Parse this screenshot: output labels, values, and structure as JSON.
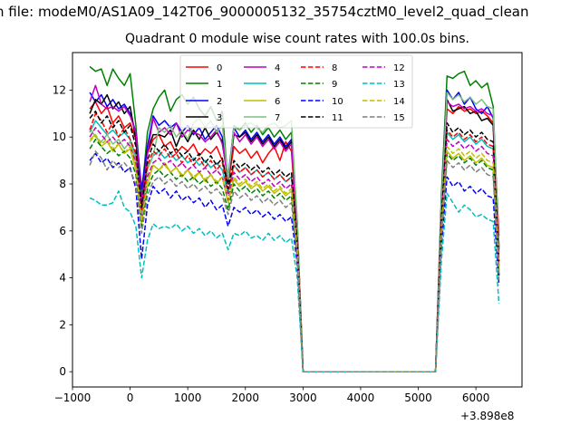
{
  "suptitle": "n file: modeM0/AS1A09_142T06_9000005132_35754cztM0_level2_quad_clean",
  "chart_data": {
    "type": "line",
    "title": "Quadrant 0 module wise count rates with 100.0s bins.",
    "xlabel": "",
    "ylabel": "",
    "x_offset_label": "+3.898e8",
    "xlim": [
      -1000,
      6800
    ],
    "ylim": [
      -0.65,
      13.6
    ],
    "x_ticks": [
      -1000,
      0,
      1000,
      2000,
      3000,
      4000,
      5000,
      6000
    ],
    "x_tick_labels": [
      "−1000",
      "0",
      "1000",
      "2000",
      "3000",
      "4000",
      "5000",
      "6000"
    ],
    "y_ticks": [
      0,
      2,
      4,
      6,
      8,
      10,
      12
    ],
    "y_tick_labels": [
      "0",
      "2",
      "4",
      "6",
      "8",
      "10",
      "12"
    ],
    "grid": false,
    "legend_position": "top-center",
    "legend_columns": 4,
    "x": [
      -700,
      -600,
      -500,
      -400,
      -300,
      -200,
      -100,
      0,
      100,
      200,
      300,
      400,
      500,
      600,
      700,
      800,
      900,
      1000,
      1100,
      1200,
      1300,
      1400,
      1500,
      1600,
      1700,
      1800,
      1900,
      2000,
      2100,
      2200,
      2300,
      2400,
      2500,
      2600,
      2700,
      2800,
      2900,
      3000,
      5300,
      5400,
      5500,
      5600,
      5700,
      5800,
      5900,
      6000,
      6100,
      6200,
      6300,
      6400
    ],
    "series": [
      {
        "name": "0",
        "color": "#ff0000",
        "dash": "solid",
        "values": [
          11.2,
          11.5,
          11.0,
          11.3,
          10.6,
          10.9,
          10.4,
          10.6,
          9.9,
          7.4,
          9.3,
          9.9,
          10.1,
          9.6,
          9.8,
          9.3,
          9.6,
          9.4,
          9.7,
          9.2,
          9.5,
          9.3,
          9.6,
          9.0,
          8.0,
          9.6,
          9.3,
          9.5,
          9.1,
          9.4,
          8.9,
          9.3,
          9.6,
          9.0,
          9.8,
          9.4,
          6.0,
          0,
          0,
          6.8,
          11.2,
          11.0,
          11.3,
          11.1,
          11.2,
          11.0,
          11.1,
          10.9,
          10.6,
          5.8
        ]
      },
      {
        "name": "1",
        "color": "#008000",
        "dash": "solid",
        "values": [
          13.0,
          12.8,
          12.9,
          12.2,
          12.9,
          12.5,
          12.2,
          12.7,
          10.5,
          7.5,
          10.2,
          11.2,
          11.7,
          12.0,
          11.1,
          11.6,
          11.8,
          11.4,
          11.7,
          11.2,
          10.9,
          11.3,
          10.7,
          11.1,
          8.0,
          10.5,
          10.3,
          10.6,
          10.2,
          10.5,
          10.1,
          10.4,
          10.0,
          10.3,
          9.9,
          10.2,
          6.4,
          0,
          0,
          7.5,
          12.6,
          12.5,
          12.7,
          12.8,
          12.2,
          12.4,
          12.1,
          12.3,
          11.3,
          5.3
        ]
      },
      {
        "name": "2",
        "color": "#0000ff",
        "dash": "solid",
        "values": [
          11.9,
          11.5,
          11.8,
          11.3,
          11.6,
          11.2,
          11.4,
          11.0,
          10.2,
          7.8,
          9.6,
          10.9,
          10.5,
          10.7,
          10.4,
          10.6,
          10.2,
          10.5,
          10.1,
          10.4,
          9.9,
          10.2,
          10.5,
          10.0,
          8.3,
          10.4,
          10.0,
          10.3,
          9.9,
          10.2,
          9.8,
          10.1,
          9.7,
          10.0,
          9.6,
          9.9,
          6.3,
          0,
          0,
          7.2,
          12.0,
          11.6,
          11.9,
          11.4,
          11.7,
          11.2,
          11.0,
          11.3,
          10.8,
          5.2
        ]
      },
      {
        "name": "3",
        "color": "#000000",
        "dash": "solid",
        "values": [
          11.0,
          11.6,
          11.4,
          11.8,
          11.2,
          11.5,
          11.0,
          11.3,
          9.9,
          7.2,
          9.4,
          10.1,
          10.1,
          10.0,
          10.3,
          9.6,
          10.2,
          9.8,
          10.3,
          9.9,
          10.4,
          9.9,
          10.2,
          9.8,
          8.1,
          10.1,
          10.0,
          10.2,
          9.8,
          10.1,
          9.7,
          10.0,
          9.6,
          9.9,
          9.5,
          9.8,
          6.1,
          0,
          0,
          6.9,
          11.6,
          11.1,
          11.2,
          11.3,
          11.0,
          11.1,
          10.7,
          10.8,
          10.5,
          4.1
        ]
      },
      {
        "name": "4",
        "color": "#bf00bf",
        "dash": "solid",
        "values": [
          11.5,
          12.2,
          11.4,
          11.2,
          11.3,
          11.1,
          11.3,
          10.9,
          10.2,
          7.3,
          9.3,
          10.8,
          10.2,
          10.4,
          10.1,
          10.6,
          10.0,
          10.3,
          10.2,
          10.1,
          9.8,
          10.0,
          10.3,
          9.7,
          8.2,
          10.2,
          9.8,
          10.1,
          9.7,
          10.0,
          9.6,
          9.9,
          9.5,
          9.8,
          9.4,
          9.7,
          6.2,
          0,
          0,
          7.0,
          11.5,
          11.3,
          11.4,
          11.2,
          11.3,
          11.1,
          11.2,
          11.0,
          10.9,
          5.3
        ]
      },
      {
        "name": "5",
        "color": "#00bfbf",
        "dash": "solid",
        "values": [
          10.2,
          10.7,
          10.4,
          10.1,
          10.3,
          10.0,
          10.2,
          9.9,
          9.2,
          6.8,
          8.7,
          9.2,
          9.4,
          9.1,
          9.3,
          9.0,
          9.2,
          8.9,
          9.1,
          8.8,
          9.0,
          8.7,
          8.9,
          8.6,
          7.6,
          8.8,
          8.5,
          8.7,
          8.4,
          8.6,
          8.3,
          8.5,
          8.2,
          8.4,
          8.1,
          8.3,
          5.5,
          0,
          0,
          6.3,
          10.2,
          9.9,
          10.1,
          9.8,
          10.0,
          9.7,
          9.9,
          9.6,
          9.5,
          4.5
        ]
      },
      {
        "name": "6",
        "color": "#bfbf00",
        "dash": "solid",
        "values": [
          9.9,
          10.1,
          9.6,
          9.8,
          9.4,
          9.7,
          9.3,
          9.5,
          8.6,
          6.3,
          8.0,
          8.8,
          8.6,
          8.9,
          8.5,
          8.7,
          8.3,
          8.6,
          8.2,
          8.5,
          8.1,
          8.4,
          8.0,
          8.3,
          7.2,
          8.2,
          7.9,
          8.1,
          7.8,
          8.0,
          7.7,
          7.9,
          7.6,
          7.8,
          7.5,
          7.7,
          5.1,
          0,
          0,
          5.9,
          9.4,
          9.1,
          9.3,
          9.0,
          9.2,
          8.9,
          9.1,
          8.8,
          8.7,
          4.2
        ]
      },
      {
        "name": "7",
        "color": "#7fbf7f",
        "dash": "solid",
        "values": [
          10.4,
          10.0,
          9.8,
          10.1,
          9.7,
          9.9,
          9.5,
          9.8,
          9.0,
          6.6,
          8.6,
          9.2,
          10.4,
          10.2,
          10.5,
          10.0,
          10.3,
          9.9,
          10.6,
          10.8,
          10.4,
          10.7,
          10.2,
          10.5,
          8.2,
          10.4,
          10.3,
          10.5,
          10.6,
          10.4,
          10.2,
          10.5,
          10.6,
          10.4,
          10.5,
          10.7,
          6.4,
          0,
          0,
          7.1,
          11.9,
          11.6,
          11.8,
          11.5,
          11.7,
          11.4,
          11.6,
          11.3,
          11.2,
          5.1
        ]
      },
      {
        "name": "8",
        "color": "#ff0000",
        "dash": "dashed",
        "values": [
          10.3,
          11.0,
          10.7,
          10.2,
          10.6,
          10.0,
          10.4,
          9.9,
          9.3,
          6.9,
          8.8,
          9.4,
          9.2,
          9.5,
          9.1,
          9.3,
          8.9,
          9.2,
          8.8,
          9.1,
          8.7,
          9.0,
          8.6,
          8.9,
          7.6,
          8.8,
          8.5,
          8.7,
          8.4,
          8.6,
          8.3,
          8.5,
          8.2,
          8.4,
          8.1,
          8.3,
          5.5,
          0,
          0,
          6.4,
          10.3,
          10.0,
          10.2,
          9.9,
          10.1,
          9.8,
          10.0,
          9.7,
          9.6,
          4.6
        ]
      },
      {
        "name": "9",
        "color": "#008000",
        "dash": "dashed",
        "values": [
          9.5,
          9.9,
          9.6,
          9.3,
          9.5,
          9.2,
          9.4,
          9.1,
          8.4,
          6.2,
          7.8,
          8.4,
          8.6,
          8.3,
          8.5,
          8.2,
          8.4,
          8.1,
          8.3,
          8.0,
          8.2,
          7.9,
          8.1,
          7.8,
          6.9,
          8.0,
          7.7,
          7.9,
          7.6,
          7.8,
          7.5,
          7.7,
          7.4,
          7.6,
          7.3,
          7.5,
          5.0,
          0,
          0,
          5.8,
          9.3,
          9.0,
          9.2,
          8.9,
          9.1,
          8.8,
          9.0,
          8.7,
          8.6,
          4.1
        ]
      },
      {
        "name": "10",
        "color": "#0000ff",
        "dash": "dashed",
        "values": [
          9.0,
          9.3,
          8.9,
          9.1,
          8.7,
          8.9,
          8.5,
          8.7,
          7.8,
          4.8,
          7.1,
          7.9,
          7.6,
          7.8,
          7.4,
          7.7,
          7.3,
          7.5,
          7.2,
          7.4,
          7.0,
          7.3,
          6.9,
          7.1,
          6.2,
          7.0,
          6.8,
          7.0,
          6.7,
          6.9,
          6.6,
          6.8,
          6.5,
          6.7,
          6.4,
          6.6,
          4.6,
          0,
          0,
          5.3,
          8.3,
          7.9,
          8.1,
          7.7,
          7.9,
          7.6,
          7.8,
          7.5,
          7.4,
          3.7
        ]
      },
      {
        "name": "11",
        "color": "#000000",
        "dash": "dashed",
        "values": [
          10.8,
          11.1,
          10.6,
          10.9,
          10.4,
          10.7,
          10.2,
          10.5,
          9.6,
          7.0,
          9.0,
          9.7,
          9.4,
          9.7,
          9.3,
          9.5,
          9.2,
          9.4,
          9.0,
          9.3,
          8.9,
          9.2,
          8.8,
          9.1,
          7.8,
          9.0,
          8.7,
          8.9,
          8.6,
          8.8,
          8.5,
          8.7,
          8.4,
          8.6,
          8.3,
          8.5,
          5.6,
          0,
          0,
          6.5,
          10.6,
          10.2,
          10.4,
          10.1,
          10.3,
          10.0,
          10.2,
          9.9,
          9.8,
          4.7
        ]
      },
      {
        "name": "12",
        "color": "#bf00bf",
        "dash": "dashed",
        "values": [
          10.0,
          10.4,
          10.1,
          9.8,
          10.0,
          9.7,
          9.9,
          9.6,
          8.9,
          6.5,
          8.3,
          8.9,
          9.1,
          8.8,
          9.0,
          8.7,
          8.9,
          8.6,
          8.8,
          8.5,
          8.7,
          8.4,
          8.6,
          8.3,
          7.3,
          8.5,
          8.2,
          8.4,
          8.1,
          8.3,
          8.0,
          8.2,
          7.9,
          8.1,
          7.8,
          8.0,
          5.3,
          0,
          0,
          6.1,
          9.9,
          9.6,
          9.8,
          9.5,
          9.7,
          9.4,
          9.6,
          9.3,
          9.2,
          4.4
        ]
      },
      {
        "name": "13",
        "color": "#00bfbf",
        "dash": "dashed",
        "values": [
          7.4,
          7.3,
          7.1,
          7.1,
          7.2,
          7.7,
          7.0,
          6.8,
          6.2,
          4.0,
          5.6,
          6.3,
          6.1,
          6.2,
          6.1,
          6.3,
          6.0,
          6.2,
          5.9,
          6.1,
          5.8,
          6.0,
          5.7,
          5.9,
          5.2,
          5.9,
          5.8,
          6.0,
          5.7,
          5.8,
          5.6,
          5.9,
          5.6,
          5.8,
          5.5,
          5.7,
          4.0,
          0,
          0,
          4.7,
          7.6,
          7.2,
          6.8,
          7.1,
          6.9,
          6.6,
          6.7,
          6.5,
          6.4,
          2.9
        ]
      },
      {
        "name": "14",
        "color": "#bfbf00",
        "dash": "dashed",
        "values": [
          9.8,
          10.1,
          9.7,
          9.9,
          9.5,
          9.7,
          9.3,
          9.6,
          8.7,
          6.4,
          8.1,
          8.8,
          8.6,
          8.8,
          8.5,
          8.7,
          8.4,
          8.6,
          8.3,
          8.5,
          8.2,
          8.4,
          8.1,
          8.3,
          7.2,
          8.3,
          8.0,
          8.2,
          7.9,
          8.1,
          7.8,
          8.0,
          7.7,
          7.9,
          7.6,
          7.8,
          5.2,
          0,
          0,
          6.0,
          9.6,
          9.3,
          9.5,
          9.2,
          9.4,
          9.1,
          9.3,
          9.0,
          8.9,
          4.3
        ]
      },
      {
        "name": "15",
        "color": "#7f7f7f",
        "dash": "dashed",
        "values": [
          8.8,
          9.4,
          9.1,
          8.6,
          9.0,
          8.7,
          8.9,
          8.6,
          8.0,
          5.9,
          7.5,
          8.1,
          8.3,
          8.0,
          8.2,
          7.9,
          8.1,
          7.8,
          8.0,
          7.7,
          7.9,
          7.6,
          7.8,
          7.5,
          6.7,
          7.7,
          7.4,
          7.6,
          7.3,
          7.5,
          7.2,
          7.4,
          7.1,
          7.3,
          7.0,
          7.2,
          4.8,
          0,
          0,
          5.6,
          9.0,
          8.7,
          8.9,
          8.6,
          8.8,
          8.5,
          8.7,
          8.4,
          8.3,
          3.9
        ]
      }
    ]
  }
}
